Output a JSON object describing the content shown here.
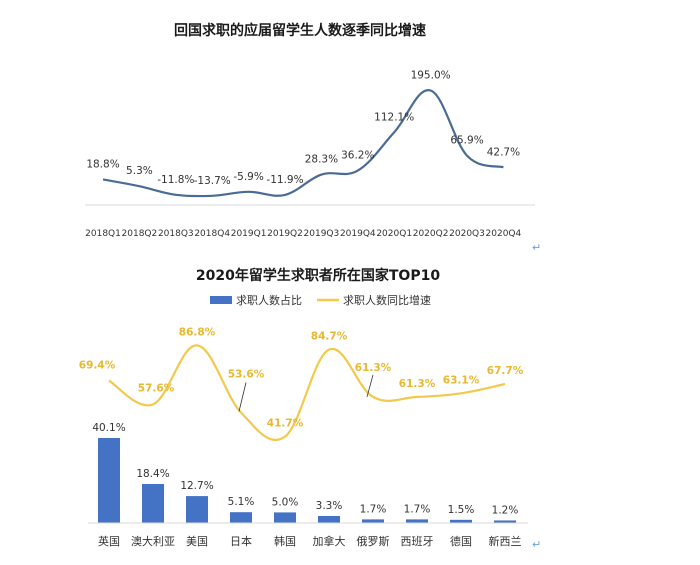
{
  "chart_data": [
    {
      "type": "line",
      "title": "回国求职的应届留学生人数逐季同比增速",
      "categories": [
        "2018Q1",
        "2018Q2",
        "2018Q3",
        "2018Q4",
        "2019Q1",
        "2019Q2",
        "2019Q3",
        "2019Q4",
        "2020Q1",
        "2020Q2",
        "2020Q3",
        "2020Q4"
      ],
      "series": [
        {
          "values": [
            18.8,
            5.3,
            -11.8,
            -13.7,
            -5.9,
            -11.9,
            28.3,
            36.2,
            112.1,
            195.0,
            65.9,
            42.7
          ],
          "labels": [
            "18.8%",
            "5.3%",
            "-11.8%",
            "-13.7%",
            "-5.9%",
            "-11.9%",
            "28.3%",
            "36.2%",
            "112.1%",
            "195.0%",
            "65.9%",
            "42.7%"
          ],
          "color": "#4a6b93"
        }
      ],
      "ylim": [
        -30,
        200
      ],
      "grid": false,
      "legend": "none",
      "end_mark": "↵"
    },
    {
      "type": "bar+line",
      "title": "2020年留学生求职者所在国家TOP10",
      "categories": [
        "英国",
        "澳大利亚",
        "美国",
        "日本",
        "韩国",
        "加拿大",
        "俄罗斯",
        "西班牙",
        "德国",
        "新西兰"
      ],
      "series": [
        {
          "name": "求职人数占比",
          "type": "bar",
          "color": "#4472c4",
          "values": [
            40.1,
            18.4,
            12.7,
            5.1,
            5.0,
            3.3,
            1.7,
            1.7,
            1.5,
            1.2
          ],
          "labels": [
            "40.1%",
            "18.4%",
            "12.7%",
            "5.1%",
            "5.0%",
            "3.3%",
            "1.7%",
            "1.7%",
            "1.5%",
            "1.2%"
          ]
        },
        {
          "name": "求职人数同比增速",
          "type": "line",
          "color": "#f2c94c",
          "label_color": "#e8b830",
          "values": [
            69.4,
            57.6,
            86.8,
            53.6,
            41.7,
            84.7,
            61.3,
            61.3,
            63.1,
            67.7
          ],
          "labels": [
            "69.4%",
            "57.6%",
            "86.8%",
            "53.6%",
            "41.7%",
            "84.7%",
            "61.3%",
            "61.3%",
            "63.1%",
            "67.7%"
          ]
        }
      ],
      "legend": "top",
      "grid": false,
      "end_mark": "↵"
    }
  ]
}
